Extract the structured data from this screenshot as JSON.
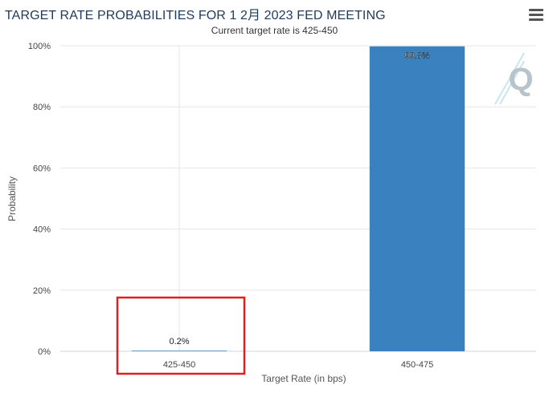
{
  "header": {
    "title": "TARGET RATE PROBABILITIES FOR 1 2月 2023 FED MEETING",
    "subtitle": "Current target rate is 425-450",
    "menu_icon": "hamburger-menu-icon"
  },
  "chart_data": {
    "type": "bar",
    "categories": [
      "425-450",
      "450-475"
    ],
    "values": [
      0.2,
      99.8
    ],
    "data_labels": [
      "0.2%",
      "99.8%"
    ],
    "xlabel": "Target Rate (in bps)",
    "ylabel": "Probability",
    "ylim": [
      0,
      100
    ],
    "yticks": [
      "0%",
      "20%",
      "40%",
      "60%",
      "80%",
      "100%"
    ],
    "grid": true,
    "bar_color": "#3a82bf"
  },
  "annotation": {
    "highlight_color": "#e02020",
    "highlight_target": "425-450"
  },
  "watermark": "Q"
}
